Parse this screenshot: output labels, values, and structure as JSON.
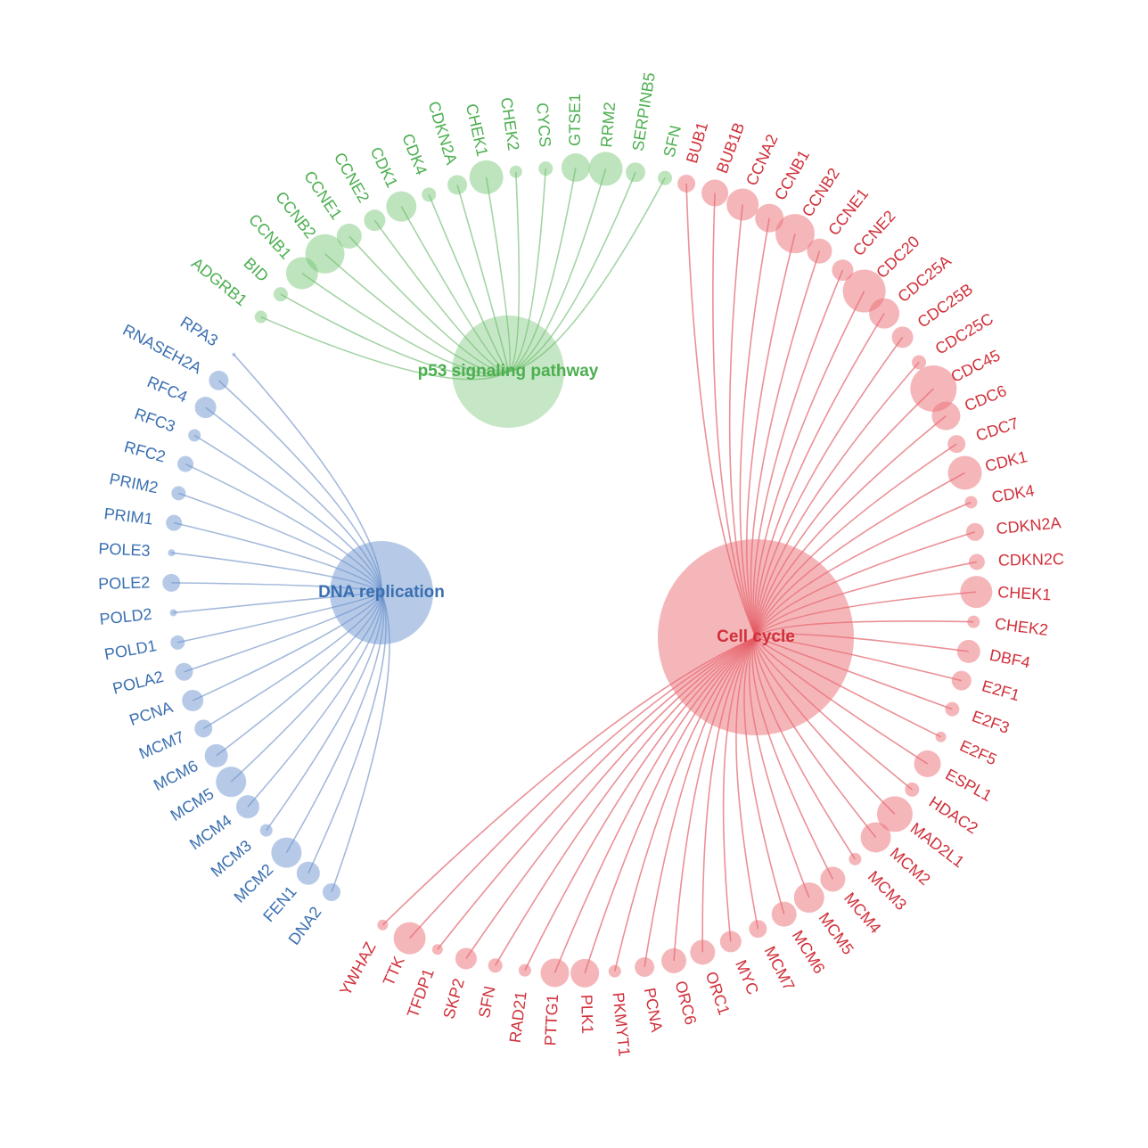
{
  "pathways": [
    {
      "label": "p53 signaling pathway",
      "genes": [
        "ADGRB1",
        "BID",
        "CCNB1",
        "CCNB2",
        "CCNE1",
        "CCNE2",
        "CDK1",
        "CDK4",
        "CDKN2A",
        "CHEK1",
        "CHEK2",
        "CYCS",
        "GTSE1",
        "RRM2",
        "SERPINB5",
        "SFN"
      ]
    },
    {
      "label": "Cell cycle",
      "genes": [
        "BUB1",
        "BUB1B",
        "CCNA2",
        "CCNB1",
        "CCNB2",
        "CCNE1",
        "CCNE2",
        "CDC20",
        "CDC25A",
        "CDC25B",
        "CDC25C",
        "CDC45",
        "CDC6",
        "CDC7",
        "CDK1",
        "CDK4",
        "CDKN2A",
        "CDKN2C",
        "CHEK1",
        "CHEK2",
        "DBF4",
        "E2F1",
        "E2F3",
        "E2F5",
        "ESPL1",
        "HDAC2",
        "MAD2L1",
        "MCM2",
        "MCM3",
        "MCM4",
        "MCM5",
        "MCM6",
        "MCM7",
        "MYC",
        "ORC1",
        "ORC6",
        "PCNA",
        "PKMYT1",
        "PLK1",
        "PTTG1",
        "RAD21",
        "SFN",
        "SKP2",
        "TFDP1",
        "TTK",
        "YWHAZ"
      ]
    },
    {
      "label": "DNA replication",
      "genes": [
        "DNA2",
        "FEN1",
        "MCM2",
        "MCM3",
        "MCM4",
        "MCM5",
        "MCM6",
        "MCM7",
        "PCNA",
        "POLA2",
        "POLD1",
        "POLD2",
        "POLE2",
        "POLE3",
        "PRIM1",
        "PRIM2",
        "RFC2",
        "RFC3",
        "RFC4",
        "RNASEH2A",
        "RPA3"
      ]
    }
  ]
}
